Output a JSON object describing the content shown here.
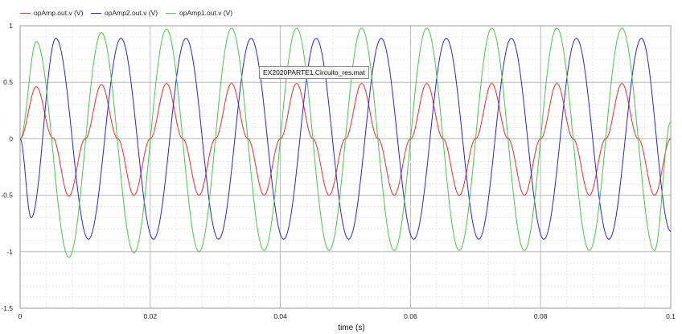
{
  "chart_data": {
    "type": "line",
    "xlabel": "time (s)",
    "ylabel": "",
    "xlim": [
      0,
      0.1
    ],
    "ylim": [
      -1.5,
      1
    ],
    "x_ticks": [
      "0",
      "0.02",
      "0.04",
      "0.06",
      "0.08",
      "0.1"
    ],
    "y_ticks": [
      "1",
      "0.5",
      "0",
      "-0.5",
      "-1",
      "-1.5"
    ],
    "grid": true,
    "legend_position": "top-left",
    "annotation": "EX2020PARTE1.Circuito_res.mat",
    "series": [
      {
        "name": "opAmp.out.v (V)",
        "color": "#e03030",
        "x": [
          0,
          0.0025,
          0.005,
          0.0075,
          0.01,
          0.0125,
          0.015,
          0.0175,
          0.02,
          0.0225,
          0.025,
          0.0275,
          0.03,
          0.0325,
          0.035,
          0.0375,
          0.04,
          0.0425,
          0.045,
          0.0475,
          0.05,
          0.0525,
          0.055,
          0.0575,
          0.06,
          0.0625,
          0.065,
          0.0675,
          0.07,
          0.0725,
          0.075,
          0.0775,
          0.08,
          0.0825,
          0.085,
          0.0875,
          0.09,
          0.0925,
          0.095,
          0.0975,
          0.1
        ],
        "y": [
          0,
          0.46,
          0.01,
          -0.51,
          0,
          0.48,
          0,
          -0.5,
          0,
          0.49,
          0,
          -0.5,
          0,
          0.49,
          0,
          -0.5,
          0,
          0.49,
          0,
          -0.5,
          0,
          0.49,
          0,
          -0.5,
          0,
          0.49,
          0,
          -0.5,
          0,
          0.49,
          0,
          -0.5,
          0,
          0.49,
          0,
          -0.5,
          0,
          0.49,
          0,
          -0.5,
          0
        ]
      },
      {
        "name": "opAmp2.out.v (V)",
        "color": "#2828c8",
        "x": [
          0,
          0.0017,
          0.0055,
          0.0105,
          0.0155,
          0.0205,
          0.0255,
          0.0305,
          0.0355,
          0.0405,
          0.0455,
          0.0505,
          0.0555,
          0.0605,
          0.0655,
          0.0705,
          0.0755,
          0.0805,
          0.0855,
          0.0905,
          0.0955,
          0.1
        ],
        "y": [
          0,
          -0.7,
          0.89,
          -0.89,
          0.89,
          -0.89,
          0.89,
          -0.89,
          0.89,
          -0.89,
          0.89,
          -0.89,
          0.89,
          -0.89,
          0.89,
          -0.89,
          0.89,
          -0.89,
          0.89,
          -0.89,
          0.89,
          -0.82
        ]
      },
      {
        "name": "opAmp1.out.v (V)",
        "color": "#50c050",
        "x": [
          0,
          0.0025,
          0.0075,
          0.0125,
          0.0175,
          0.0225,
          0.0275,
          0.0325,
          0.0375,
          0.0425,
          0.0475,
          0.0525,
          0.0575,
          0.0625,
          0.0675,
          0.0725,
          0.0775,
          0.0825,
          0.0875,
          0.0925,
          0.0975,
          0.1
        ],
        "y": [
          0,
          0.86,
          -1.05,
          0.94,
          -1.01,
          0.97,
          -1.0,
          0.98,
          -0.99,
          0.98,
          -0.99,
          0.98,
          -0.99,
          0.98,
          -0.99,
          0.98,
          -0.99,
          0.98,
          -0.99,
          0.98,
          -0.99,
          0.15
        ]
      }
    ]
  }
}
